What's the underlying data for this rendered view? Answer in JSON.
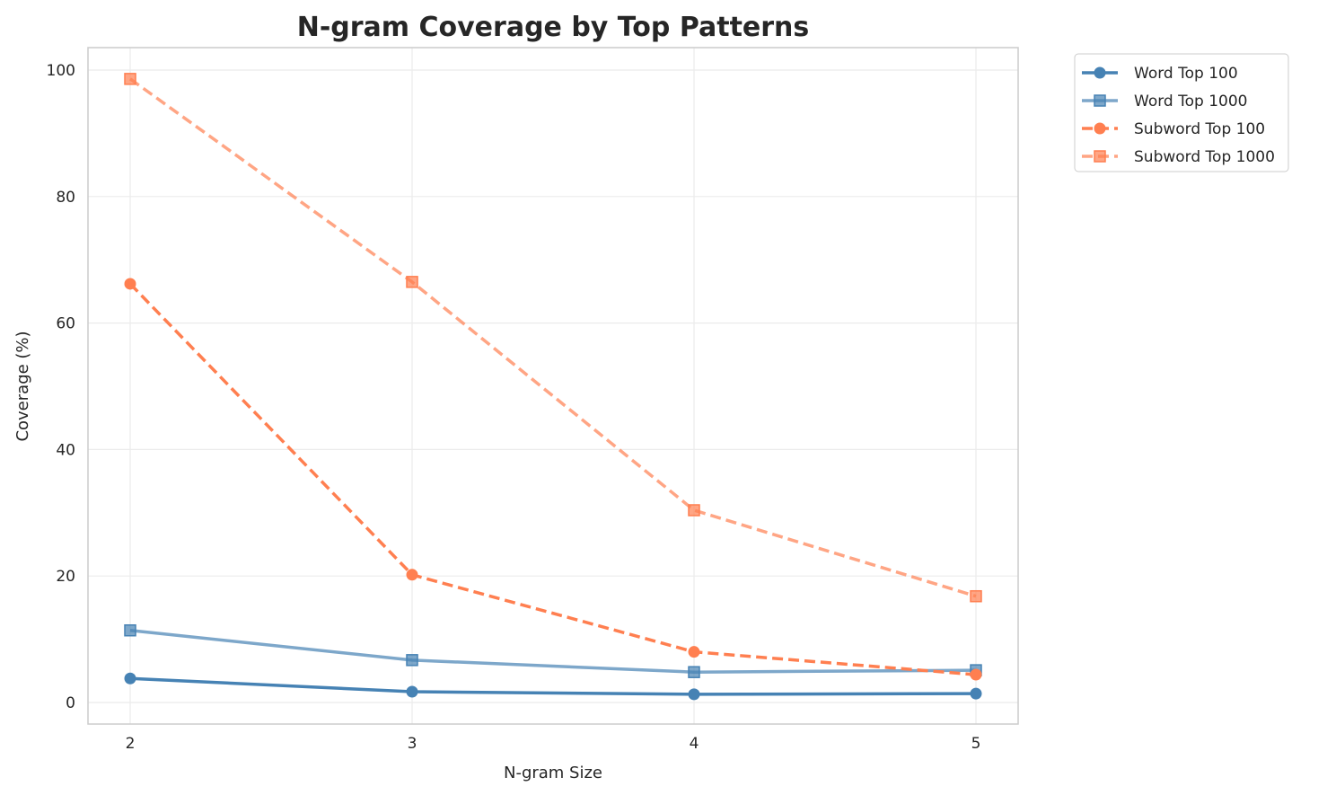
{
  "chart_data": {
    "type": "line",
    "title": "N-gram Coverage by Top Patterns",
    "xlabel": "N-gram Size",
    "ylabel": "Coverage (%)",
    "x": [
      2,
      3,
      4,
      5
    ],
    "xticks": [
      "2",
      "3",
      "4",
      "5"
    ],
    "yticks": [
      "0",
      "20",
      "40",
      "60",
      "80",
      "100"
    ],
    "ylim": [
      -3.5,
      104
    ],
    "xlim": [
      1.85,
      5.15
    ],
    "grid": true,
    "legend_position": "outside-top-right",
    "series": [
      {
        "name": "Word Top 100",
        "values": [
          3.8,
          1.7,
          1.3,
          1.4
        ],
        "color": "#4682b4",
        "marker": "circle",
        "dash": false,
        "alpha": 1
      },
      {
        "name": "Word Top 1000",
        "values": [
          11.4,
          6.7,
          4.8,
          5.1
        ],
        "color": "#4682b4",
        "marker": "square",
        "dash": false,
        "alpha": 0.7
      },
      {
        "name": "Subword Top 100",
        "values": [
          66.2,
          20.2,
          8.0,
          4.4
        ],
        "color": "#ff7f50",
        "marker": "circle",
        "dash": true,
        "alpha": 1
      },
      {
        "name": "Subword Top 1000",
        "values": [
          98.6,
          66.5,
          30.4,
          16.8
        ],
        "color": "#ff7f50",
        "marker": "square",
        "dash": true,
        "alpha": 0.7
      }
    ]
  }
}
